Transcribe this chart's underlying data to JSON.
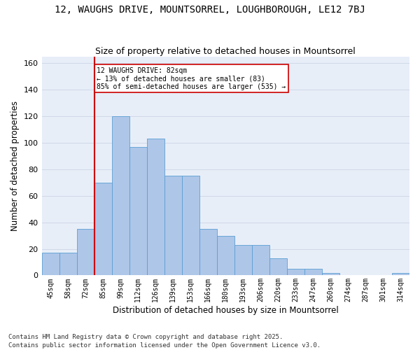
{
  "title": "12, WAUGHS DRIVE, MOUNTSORREL, LOUGHBOROUGH, LE12 7BJ",
  "subtitle": "Size of property relative to detached houses in Mountsorrel",
  "xlabel": "Distribution of detached houses by size in Mountsorrel",
  "ylabel": "Number of detached properties",
  "categories": [
    "45sqm",
    "58sqm",
    "72sqm",
    "85sqm",
    "99sqm",
    "112sqm",
    "126sqm",
    "139sqm",
    "153sqm",
    "166sqm",
    "180sqm",
    "193sqm",
    "206sqm",
    "220sqm",
    "233sqm",
    "247sqm",
    "260sqm",
    "274sqm",
    "287sqm",
    "301sqm",
    "314sqm"
  ],
  "bar_values": [
    17,
    17,
    35,
    70,
    120,
    97,
    103,
    75,
    75,
    35,
    30,
    23,
    23,
    13,
    5,
    5,
    2,
    0,
    0,
    0,
    2
  ],
  "bar_color": "#aec6e8",
  "bar_edge_color": "#5a9fd4",
  "vline_color": "#cc0000",
  "annotation_text": "12 WAUGHS DRIVE: 82sqm\n← 13% of detached houses are smaller (83)\n85% of semi-detached houses are larger (535) →",
  "annotation_box_color": "#ffffff",
  "annotation_box_edge": "#cc0000",
  "grid_color": "#d0d8e8",
  "background_color": "#e8eef8",
  "footer_text": "Contains HM Land Registry data © Crown copyright and database right 2025.\nContains public sector information licensed under the Open Government Licence v3.0.",
  "ylim": [
    0,
    165
  ],
  "yticks": [
    0,
    20,
    40,
    60,
    80,
    100,
    120,
    140,
    160
  ],
  "title_fontsize": 10,
  "subtitle_fontsize": 9,
  "tick_fontsize": 7,
  "label_fontsize": 8.5,
  "footer_fontsize": 6.5,
  "vline_bar_index": 3
}
